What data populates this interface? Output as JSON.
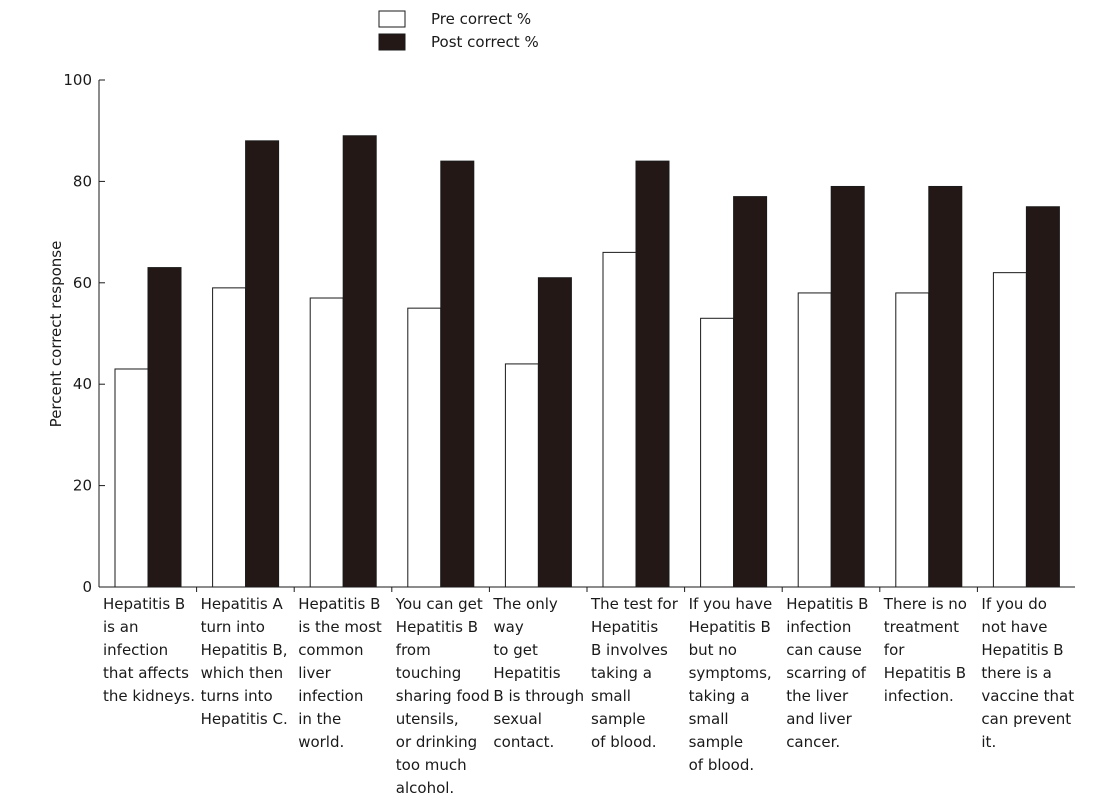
{
  "chart_data": {
    "type": "bar",
    "title": "",
    "xlabel": "",
    "ylabel": "Percent correct response",
    "ylim": [
      0,
      100
    ],
    "yticks": [
      0,
      20,
      40,
      60,
      80,
      100
    ],
    "grid": false,
    "legend_position": "top-center",
    "categories": [
      [
        "Hepatitis B",
        "is an",
        "infection",
        "that affects",
        "the kidneys."
      ],
      [
        "Hepatitis A",
        "turn into",
        "Hepatitis B,",
        "which then",
        "turns into",
        "Hepatitis C."
      ],
      [
        "Hepatitis B",
        "is the most",
        "common",
        "liver",
        "infection",
        "in the",
        "world."
      ],
      [
        "You can get",
        "Hepatitis B",
        "from",
        "touching",
        "sharing food",
        "utensils,",
        "or drinking",
        "too much",
        "alcohol."
      ],
      [
        "The only",
        "way",
        "to get",
        "Hepatitis",
        "B is through",
        "sexual",
        "contact."
      ],
      [
        "The test for",
        "Hepatitis",
        "B involves",
        "taking a",
        "small",
        "sample",
        "of blood."
      ],
      [
        "If you have",
        "Hepatitis B",
        "but no",
        "symptoms,",
        "taking a",
        "small",
        "sample",
        "of blood."
      ],
      [
        "Hepatitis B",
        "infection",
        "can cause",
        "scarring of",
        "the liver",
        "and liver",
        "cancer."
      ],
      [
        "There is no",
        "treatment",
        "for",
        "Hepatitis B",
        "infection."
      ],
      [
        "If  you  do",
        "not have",
        "Hepatitis B",
        "there is a",
        "vaccine that",
        "can prevent",
        "it."
      ]
    ],
    "series": [
      {
        "name": "Pre correct %",
        "color": "#ffffff",
        "values": [
          43,
          59,
          57,
          55,
          44,
          66,
          53,
          58,
          58,
          62
        ]
      },
      {
        "name": "Post correct %",
        "color": "#231815",
        "values": [
          63,
          88,
          89,
          84,
          61,
          84,
          77,
          79,
          79,
          75
        ]
      }
    ]
  }
}
